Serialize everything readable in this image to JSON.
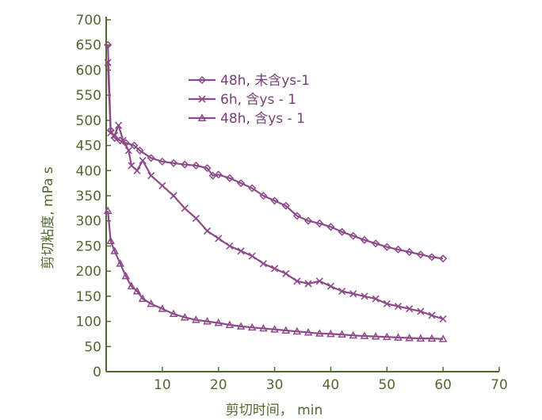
{
  "chart_data": {
    "type": "line",
    "title": "",
    "xlabel": "剪切时间， min",
    "ylabel": "剪切粘度, mPa s",
    "xlim": [
      0,
      70
    ],
    "ylim": [
      0,
      700
    ],
    "xticks": [
      10,
      20,
      30,
      40,
      50,
      60,
      70
    ],
    "yticks": [
      0,
      50,
      100,
      150,
      200,
      250,
      300,
      350,
      400,
      450,
      500,
      550,
      600,
      650,
      700
    ],
    "grid": false,
    "legend_position": "top-center",
    "series_color": "#8c4a8a",
    "axis_text_color": "#4f6a2e",
    "series": [
      {
        "name": "48h, 未含ys-1",
        "marker": "diamond",
        "x": [
          0.3,
          0.8,
          1.5,
          2.5,
          3.5,
          5,
          6,
          8,
          10,
          12,
          14,
          16,
          18,
          19,
          20,
          22,
          24,
          26,
          28,
          30,
          32,
          34,
          36,
          38,
          40,
          42,
          44,
          46,
          48,
          50,
          52,
          54,
          56,
          58,
          60
        ],
        "y": [
          650,
          480,
          465,
          460,
          455,
          450,
          440,
          425,
          418,
          415,
          412,
          410,
          405,
          390,
          392,
          385,
          375,
          365,
          350,
          340,
          330,
          310,
          300,
          295,
          288,
          278,
          270,
          262,
          255,
          248,
          243,
          238,
          233,
          228,
          225
        ]
      },
      {
        "name": "6h, 含ys - 1",
        "marker": "x",
        "x": [
          0.3,
          0.8,
          1.5,
          2.2,
          3,
          4,
          4.5,
          5.5,
          6.5,
          8,
          10,
          12,
          14,
          16,
          18,
          20,
          22,
          24,
          26,
          28,
          30,
          32,
          34,
          36,
          38,
          40,
          42,
          44,
          46,
          48,
          50,
          52,
          54,
          56,
          58,
          60
        ],
        "y": [
          615,
          475,
          470,
          490,
          460,
          440,
          410,
          400,
          420,
          390,
          370,
          350,
          325,
          305,
          280,
          265,
          250,
          240,
          230,
          215,
          205,
          195,
          180,
          175,
          180,
          170,
          160,
          155,
          150,
          145,
          135,
          130,
          125,
          120,
          112,
          105
        ]
      },
      {
        "name": "48h, 含ys - 1",
        "marker": "triangle",
        "x": [
          0.3,
          0.8,
          1.5,
          2.5,
          3.5,
          4.5,
          5.5,
          6.5,
          8,
          10,
          12,
          14,
          16,
          18,
          20,
          22,
          24,
          26,
          28,
          30,
          32,
          34,
          36,
          38,
          40,
          42,
          44,
          46,
          48,
          50,
          52,
          54,
          56,
          58,
          60
        ],
        "y": [
          320,
          260,
          240,
          215,
          190,
          170,
          160,
          145,
          135,
          125,
          115,
          108,
          103,
          100,
          97,
          93,
          90,
          88,
          86,
          84,
          82,
          80,
          78,
          76,
          75,
          74,
          72,
          71,
          70,
          69,
          68,
          67,
          66,
          66,
          65
        ]
      }
    ]
  }
}
